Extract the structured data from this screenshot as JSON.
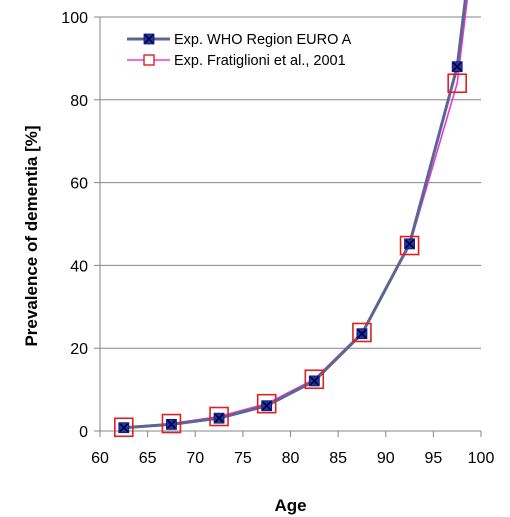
{
  "chart_data": {
    "type": "line",
    "title": "",
    "xlabel": "Age",
    "ylabel": "Prevalence of dementia [%]",
    "xlim": [
      60,
      100
    ],
    "ylim": [
      0,
      100
    ],
    "x_ticks": [
      "60",
      "65",
      "70",
      "75",
      "80",
      "85",
      "90",
      "95",
      "100"
    ],
    "y_ticks": [
      "0",
      "20",
      "40",
      "60",
      "80",
      "100"
    ],
    "grid": "horizontal",
    "legend_position": "top-left",
    "series": [
      {
        "name": "Exp.  WHO Region EURO A",
        "color": "#5b6790",
        "marker_color": "#1f2fbf",
        "marker": "filled-square-x",
        "x": [
          62.5,
          67.5,
          72.5,
          77.5,
          82.5,
          87.5,
          92.5,
          97.5
        ],
        "y": [
          0.8,
          1.6,
          3.1,
          6.1,
          12.1,
          23.5,
          45.2,
          88.0
        ],
        "overflow_line_to": [
          98.4,
          105
        ]
      },
      {
        "name": "Exp. Fratiglioni et al., 2001",
        "color": "#e83ad8",
        "marker_color": "#e02020",
        "marker": "open-square",
        "x": [
          62.5,
          67.5,
          72.5,
          77.5,
          82.5,
          87.5,
          92.5,
          97.5
        ],
        "y": [
          0.9,
          1.8,
          3.5,
          6.6,
          12.5,
          23.8,
          44.8,
          84.0
        ],
        "overflow_line_to": [
          98.6,
          105
        ]
      }
    ]
  }
}
